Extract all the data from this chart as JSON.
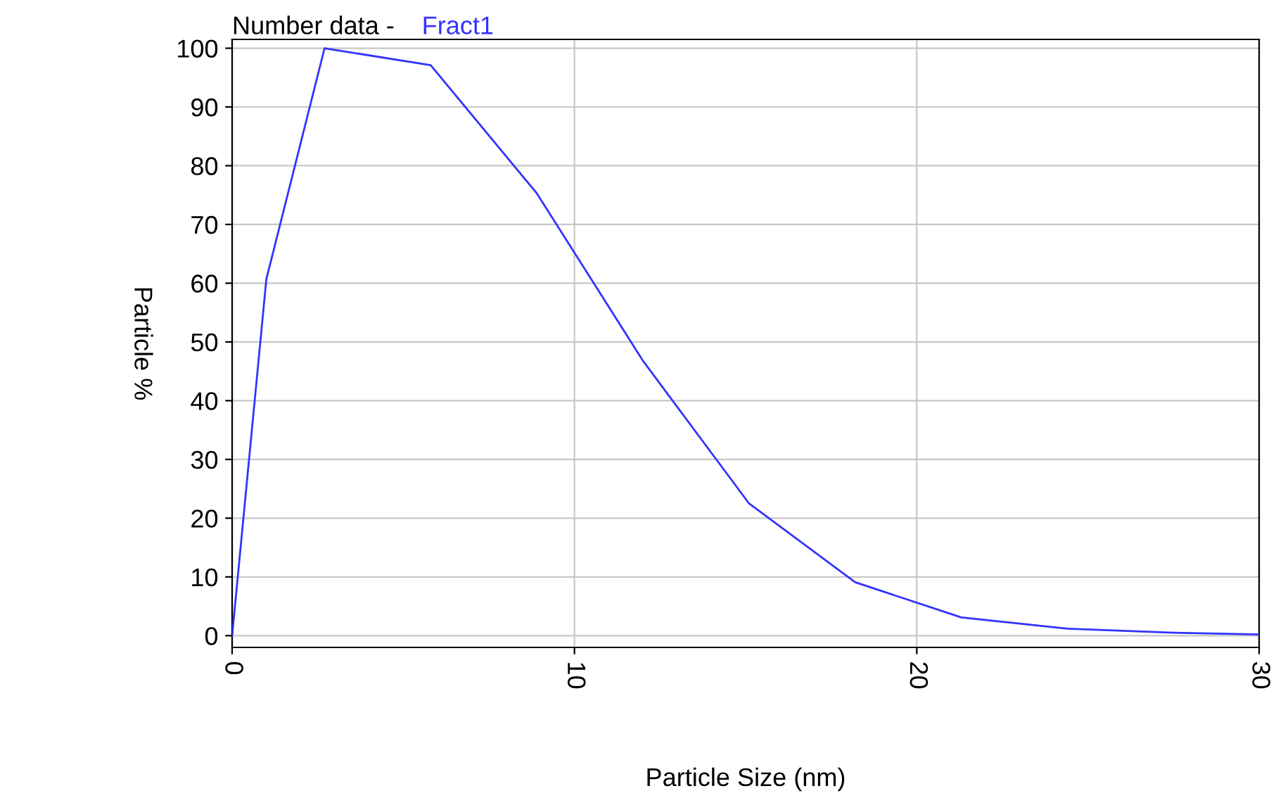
{
  "chart_data": {
    "type": "line",
    "title": "Number data -",
    "xlabel": "Particle Size (nm)",
    "ylabel": "Particle %",
    "x": [
      0,
      1,
      2.7,
      5.8,
      8.9,
      12,
      15.1,
      18.2,
      21.3,
      24.4,
      27.5,
      30
    ],
    "series": [
      {
        "name": "Fract1",
        "color": "#3333ff",
        "values": [
          0,
          60.7,
          100,
          97.1,
          75.3,
          46.8,
          22.5,
          9.1,
          3.1,
          1.2,
          0.5,
          0.2
        ]
      }
    ],
    "xlim": [
      0,
      30
    ],
    "xticks": [
      0,
      10,
      20,
      30
    ],
    "ylim": [
      -2,
      101.5
    ],
    "yticks": [
      0,
      10,
      20,
      30,
      40,
      50,
      60,
      70,
      80,
      90,
      100
    ],
    "grid": true,
    "marker": "none",
    "line_style": "solid"
  }
}
